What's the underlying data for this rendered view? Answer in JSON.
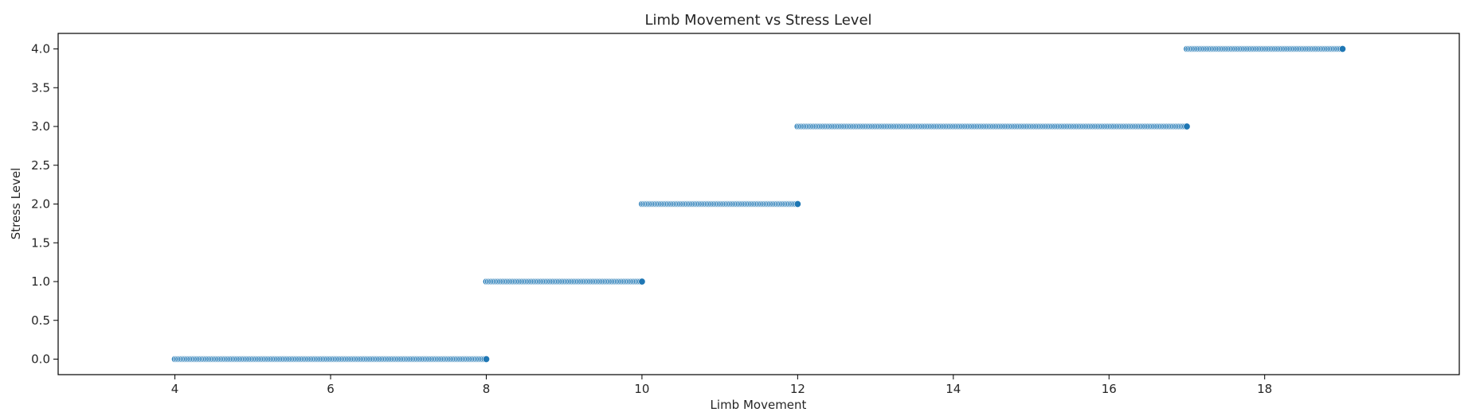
{
  "chart_data": {
    "type": "scatter",
    "title": "Limb Movement vs Stress Level",
    "xlabel": "Limb Movement",
    "ylabel": "Stress Level",
    "xlim": [
      2.5,
      20.5
    ],
    "ylim": [
      -0.2,
      4.2
    ],
    "x_ticks": [
      4,
      6,
      8,
      10,
      12,
      14,
      16,
      18
    ],
    "x_tick_labels": [
      "4",
      "6",
      "8",
      "10",
      "12",
      "14",
      "16",
      "18"
    ],
    "y_ticks": [
      0.0,
      0.5,
      1.0,
      1.5,
      2.0,
      2.5,
      3.0,
      3.5,
      4.0
    ],
    "y_tick_labels": [
      "0.0",
      "0.5",
      "1.0",
      "1.5",
      "2.0",
      "2.5",
      "3.0",
      "3.5",
      "4.0"
    ],
    "grid": false,
    "legend": "none",
    "marker_color": "#1f77b4",
    "marker_edge_color": "#ffffff",
    "series": [
      {
        "clusters": [
          {
            "y": 0,
            "x_range": [
              4.0,
              8.0
            ]
          },
          {
            "y": 1,
            "x_range": [
              8.0,
              10.0
            ]
          },
          {
            "y": 2,
            "x_range": [
              10.0,
              12.0
            ]
          },
          {
            "y": 3,
            "x_range": [
              12.0,
              17.0
            ]
          },
          {
            "y": 4,
            "x_range": [
              17.0,
              19.0
            ]
          }
        ]
      }
    ]
  }
}
